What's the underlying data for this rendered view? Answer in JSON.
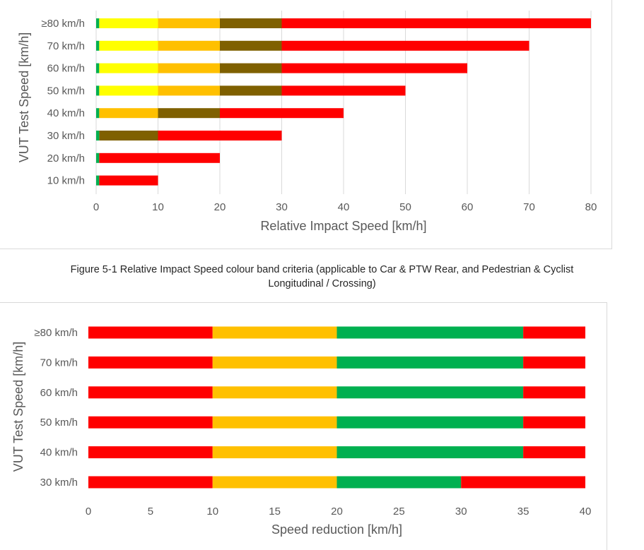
{
  "caption": {
    "line1": "Figure 5-1 Relative Impact Speed colour band criteria (applicable to Car & PTW Rear, and Pedestrian & Cyclist",
    "line2": "Longitudinal / Crossing)"
  },
  "colors": {
    "green": "#00b050",
    "yellow": "#ffff00",
    "orange": "#ffc000",
    "olive": "#7f6000",
    "red": "#ff0000",
    "grid": "#d9d9d9",
    "text": "#595959"
  },
  "chart_data": [
    {
      "type": "bar",
      "orientation": "horizontal",
      "stacked": true,
      "title": "",
      "xlabel": "Relative Impact Speed [km/h]",
      "ylabel": "VUT Test Speed [km/h]",
      "xlim": [
        0,
        80
      ],
      "xticks": [
        "0",
        "10",
        "20",
        "30",
        "40",
        "50",
        "60",
        "70",
        "80"
      ],
      "grid": true,
      "categories": [
        "≥80 km/h",
        "70 km/h",
        "60 km/h",
        "50 km/h",
        "40 km/h",
        "30 km/h",
        "20 km/h",
        "10 km/h"
      ],
      "rows": [
        {
          "label": "≥80 km/h",
          "segments": [
            {
              "color": "green",
              "from": 0,
              "to": 0.5
            },
            {
              "color": "yellow",
              "from": 0.5,
              "to": 10
            },
            {
              "color": "orange",
              "from": 10,
              "to": 20
            },
            {
              "color": "olive",
              "from": 20,
              "to": 30
            },
            {
              "color": "red",
              "from": 30,
              "to": 80
            }
          ]
        },
        {
          "label": "70 km/h",
          "segments": [
            {
              "color": "green",
              "from": 0,
              "to": 0.5
            },
            {
              "color": "yellow",
              "from": 0.5,
              "to": 10
            },
            {
              "color": "orange",
              "from": 10,
              "to": 20
            },
            {
              "color": "olive",
              "from": 20,
              "to": 30
            },
            {
              "color": "red",
              "from": 30,
              "to": 70
            }
          ]
        },
        {
          "label": "60 km/h",
          "segments": [
            {
              "color": "green",
              "from": 0,
              "to": 0.5
            },
            {
              "color": "yellow",
              "from": 0.5,
              "to": 10
            },
            {
              "color": "orange",
              "from": 10,
              "to": 20
            },
            {
              "color": "olive",
              "from": 20,
              "to": 30
            },
            {
              "color": "red",
              "from": 30,
              "to": 60
            }
          ]
        },
        {
          "label": "50 km/h",
          "segments": [
            {
              "color": "green",
              "from": 0,
              "to": 0.5
            },
            {
              "color": "yellow",
              "from": 0.5,
              "to": 10
            },
            {
              "color": "orange",
              "from": 10,
              "to": 20
            },
            {
              "color": "olive",
              "from": 20,
              "to": 30
            },
            {
              "color": "red",
              "from": 30,
              "to": 50
            }
          ]
        },
        {
          "label": "40 km/h",
          "segments": [
            {
              "color": "green",
              "from": 0,
              "to": 0.5
            },
            {
              "color": "orange",
              "from": 0.5,
              "to": 10
            },
            {
              "color": "olive",
              "from": 10,
              "to": 20
            },
            {
              "color": "red",
              "from": 20,
              "to": 40
            }
          ]
        },
        {
          "label": "30 km/h",
          "segments": [
            {
              "color": "green",
              "from": 0,
              "to": 0.5
            },
            {
              "color": "olive",
              "from": 0.5,
              "to": 10
            },
            {
              "color": "red",
              "from": 10,
              "to": 30
            }
          ]
        },
        {
          "label": "20 km/h",
          "segments": [
            {
              "color": "green",
              "from": 0,
              "to": 0.5
            },
            {
              "color": "red",
              "from": 0.5,
              "to": 20
            }
          ]
        },
        {
          "label": "10 km/h",
          "segments": [
            {
              "color": "green",
              "from": 0,
              "to": 0.5
            },
            {
              "color": "red",
              "from": 0.5,
              "to": 10
            }
          ]
        }
      ]
    },
    {
      "type": "bar",
      "orientation": "horizontal",
      "stacked": true,
      "title": "",
      "xlabel": "Speed reduction [km/h]",
      "ylabel": "VUT Test Speed [km/h]",
      "xlim": [
        0,
        40
      ],
      "xticks": [
        "0",
        "5",
        "10",
        "15",
        "20",
        "25",
        "30",
        "35",
        "40"
      ],
      "grid": false,
      "categories": [
        "≥80 km/h",
        "70 km/h",
        "60 km/h",
        "50 km/h",
        "40 km/h",
        "30 km/h"
      ],
      "rows": [
        {
          "label": "≥80 km/h",
          "segments": [
            {
              "color": "red",
              "from": 0,
              "to": 10
            },
            {
              "color": "orange",
              "from": 10,
              "to": 20
            },
            {
              "color": "green",
              "from": 20,
              "to": 35
            },
            {
              "color": "red",
              "from": 35,
              "to": 40
            }
          ]
        },
        {
          "label": "70 km/h",
          "segments": [
            {
              "color": "red",
              "from": 0,
              "to": 10
            },
            {
              "color": "orange",
              "from": 10,
              "to": 20
            },
            {
              "color": "green",
              "from": 20,
              "to": 35
            },
            {
              "color": "red",
              "from": 35,
              "to": 40
            }
          ]
        },
        {
          "label": "60 km/h",
          "segments": [
            {
              "color": "red",
              "from": 0,
              "to": 10
            },
            {
              "color": "orange",
              "from": 10,
              "to": 20
            },
            {
              "color": "green",
              "from": 20,
              "to": 35
            },
            {
              "color": "red",
              "from": 35,
              "to": 40
            }
          ]
        },
        {
          "label": "50 km/h",
          "segments": [
            {
              "color": "red",
              "from": 0,
              "to": 10
            },
            {
              "color": "orange",
              "from": 10,
              "to": 20
            },
            {
              "color": "green",
              "from": 20,
              "to": 35
            },
            {
              "color": "red",
              "from": 35,
              "to": 40
            }
          ]
        },
        {
          "label": "40 km/h",
          "segments": [
            {
              "color": "red",
              "from": 0,
              "to": 10
            },
            {
              "color": "orange",
              "from": 10,
              "to": 20
            },
            {
              "color": "green",
              "from": 20,
              "to": 35
            },
            {
              "color": "red",
              "from": 35,
              "to": 40
            }
          ]
        },
        {
          "label": "30 km/h",
          "segments": [
            {
              "color": "red",
              "from": 0,
              "to": 10
            },
            {
              "color": "orange",
              "from": 10,
              "to": 20
            },
            {
              "color": "green",
              "from": 20,
              "to": 30
            },
            {
              "color": "red",
              "from": 30,
              "to": 40
            }
          ]
        }
      ]
    }
  ]
}
